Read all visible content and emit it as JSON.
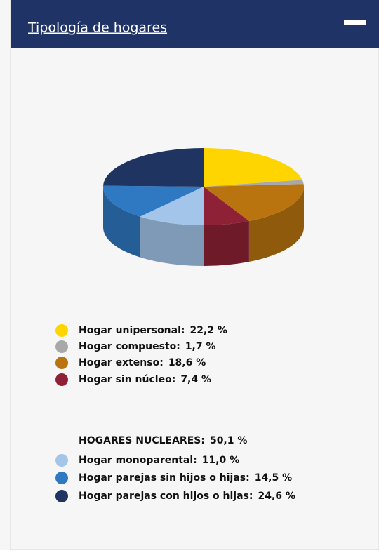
{
  "header": {
    "title": "Tipología de hogares"
  },
  "chart_data": {
    "type": "pie3d",
    "categories": [
      "Hogar unipersonal:",
      "Hogar compuesto:",
      "Hogar extenso:",
      "Hogar sin núcleo:",
      "Hogar monoparental:",
      "Hogar parejas sin hijos o hijas:",
      "Hogar parejas con hijos o hijas:"
    ],
    "values": [
      22.2,
      1.7,
      18.6,
      7.4,
      11.0,
      14.5,
      24.6
    ],
    "value_labels": [
      "22,2 %",
      "1,7 %",
      "18,6 %",
      "7,4 %",
      "11,0 %",
      "14,5 %",
      "24,6 %"
    ],
    "colors": [
      "#ffd500",
      "#a8a8a8",
      "#b9730f",
      "#8e2135",
      "#a3c5ea",
      "#2f79c2",
      "#1f3461"
    ],
    "group_label": "HOGARES NUCLEARES:",
    "group_value_label": "50,1 %"
  }
}
